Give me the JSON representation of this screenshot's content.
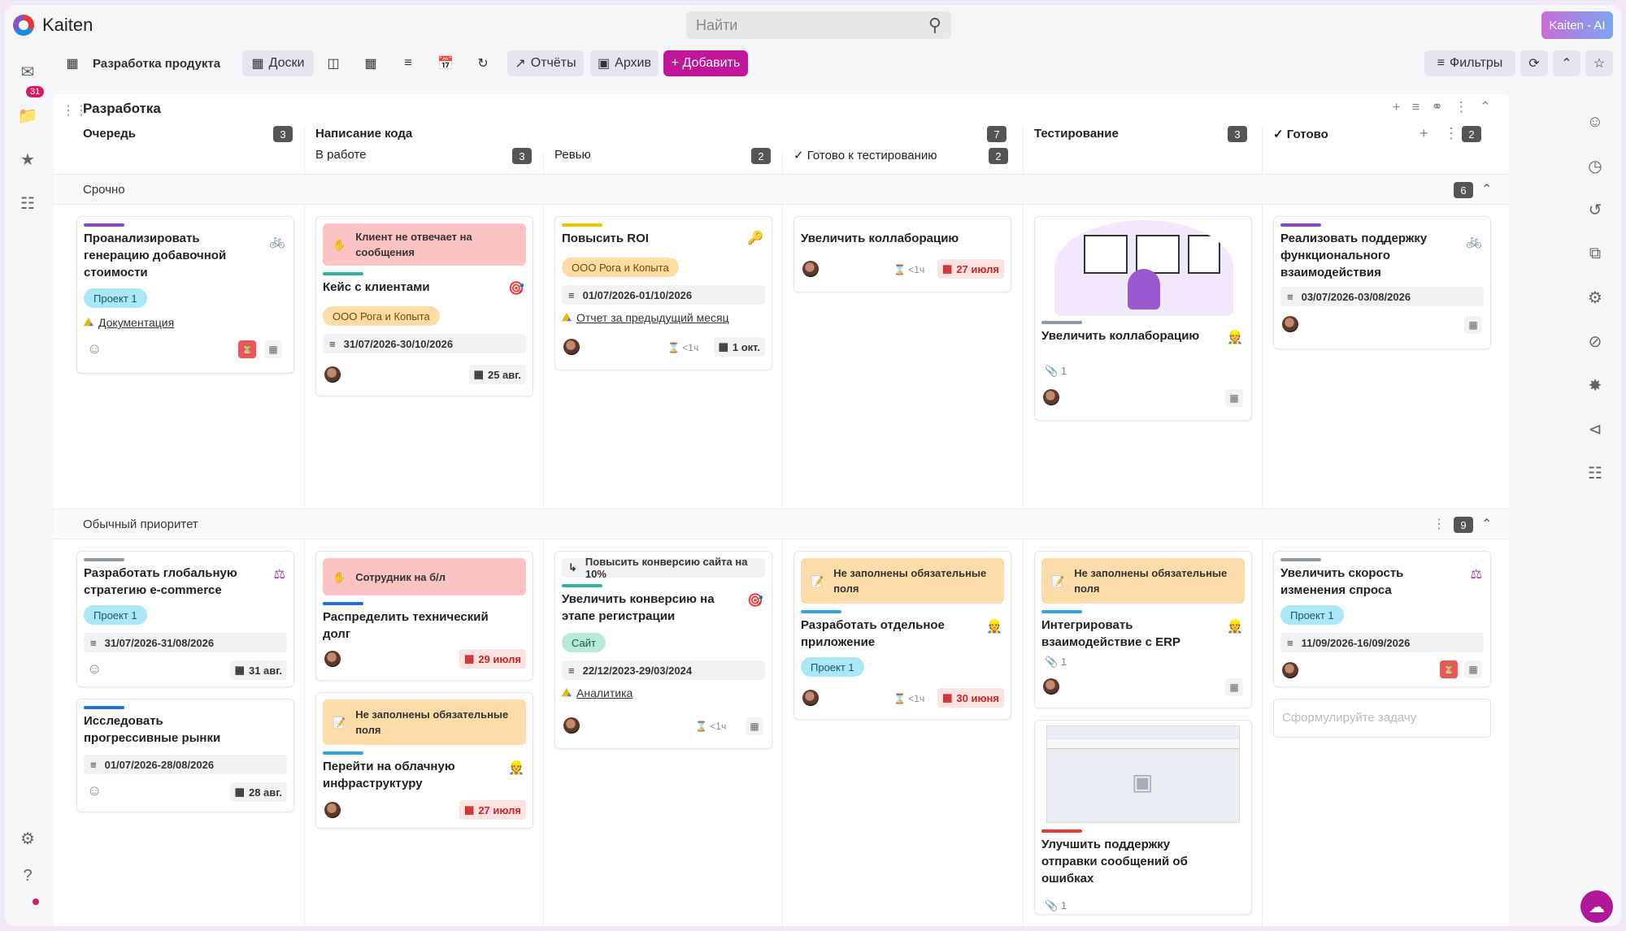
{
  "app": {
    "name": "Kaiten",
    "search_placeholder": "Найти",
    "ai_label": "Kaiten - AI",
    "notif_count": "31"
  },
  "toolbar": {
    "space": "Разработка продукта",
    "boards": "Доски",
    "reports": "Отчёты",
    "archive": "Архив",
    "add": "+ Добавить",
    "filters": "Фильтры"
  },
  "board": {
    "title": "Разработка"
  },
  "columns": [
    {
      "title": "Очередь",
      "count": "3"
    },
    {
      "title": "Написание кода",
      "count": "7"
    },
    {
      "title": "В работе",
      "count": "3"
    },
    {
      "title": "Ревью",
      "count": "2"
    },
    {
      "title": "Готово к тестированию",
      "count": "2"
    },
    {
      "title": "Тестирование",
      "count": "3"
    },
    {
      "title": "Готово",
      "count": "2"
    }
  ],
  "lanes": [
    {
      "title": "Срочно",
      "count": "6"
    },
    {
      "title": "Обычный приоритет",
      "count": "9"
    }
  ],
  "cards": {
    "c1": {
      "title": "Проанализировать генерацию добавочной стоимости",
      "tag": "Проект 1",
      "link": "Документация"
    },
    "c2": {
      "alert": "Клиент не отвечает на сообщения",
      "title": "Кейс с клиентами",
      "tag": "ООО Рога и Копыта",
      "dates": "31/07/2026-30/10/2026",
      "due": "25 авг."
    },
    "c3": {
      "title": "Повысить ROI",
      "tag": "ООО Рога и Копыта",
      "dates": "01/07/2026-01/10/2026",
      "link": "Отчет за предыдущий месяц",
      "hour": "<1ч",
      "due": "1 окт."
    },
    "c4": {
      "title": "Увеличить коллаборацию",
      "hour": "<1ч",
      "due": "27 июля"
    },
    "c5": {
      "title": "Увеличить коллаборацию",
      "attach": "1"
    },
    "c6": {
      "title": "Реализовать поддержку функционального взаимодействия",
      "dates": "03/07/2026-03/08/2026"
    },
    "c7": {
      "title": "Разработать глобальную стратегию e-commerce",
      "tag": "Проект 1",
      "dates": "31/07/2026-31/08/2026",
      "due": "31 авг."
    },
    "c8": {
      "title": "Исследовать прогрессивные рынки",
      "dates": "01/07/2026-28/08/2026",
      "due": "28 авг."
    },
    "c9": {
      "alert": "Сотрудник на б/л",
      "title": "Распределить технический долг",
      "due": "29 июля"
    },
    "c10": {
      "alert": "Не заполнены обязательные поля",
      "title": "Перейти на облачную инфраструктуру",
      "due": "27 июля"
    },
    "c11": {
      "parent": "Повысить конверсию сайта на 10%",
      "title": "Увеличить конверсию на этапе регистрации",
      "tag": "Сайт",
      "dates": "22/12/2023-29/03/2024",
      "link": "Аналитика",
      "hour": "<1ч"
    },
    "c12": {
      "alert": "Не заполнены обязательные поля",
      "title": "Разработать отдельное приложение",
      "tag": "Проект 1",
      "hour": "<1ч",
      "due": "30 июня"
    },
    "c13": {
      "alert": "Не заполнены обязательные поля",
      "title": "Интегрировать взаимодействие с ERP",
      "attach": "1"
    },
    "c14": {
      "title": "Улучшить поддержку отправки сообщений об ошибках",
      "attach": "1"
    },
    "c15": {
      "title": "Увеличить скорость изменения спроса",
      "tag": "Проект 1",
      "dates": "11/09/2026-16/09/2026"
    },
    "new_task": "Сформулируйте задачу"
  }
}
